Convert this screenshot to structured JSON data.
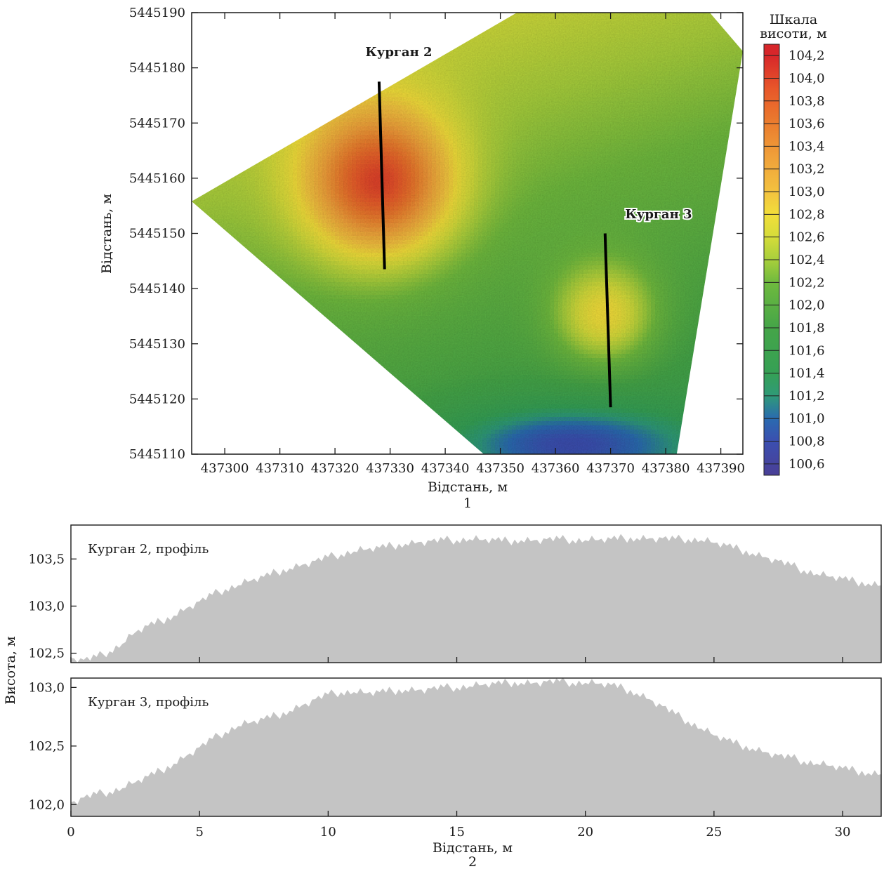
{
  "chart_data": [
    {
      "type": "heatmap",
      "panel_number": "1",
      "xlabel": "Відстань, м",
      "ylabel": "Відстань, м",
      "xlim": [
        437294,
        437394
      ],
      "ylim": [
        5445110,
        5445190
      ],
      "xticks": [
        "437300",
        "437310",
        "437320",
        "437330",
        "437340",
        "437350",
        "437360",
        "437370",
        "437380",
        "437390"
      ],
      "yticks": [
        "5445190",
        "5445180",
        "5445170",
        "5445160",
        "5445150",
        "5445140",
        "5445130",
        "5445120",
        "5445110"
      ],
      "colorbar": {
        "title_line1": "Шкала",
        "title_line2": "висоти, м",
        "vmin": 100.5,
        "vmax": 104.3,
        "labels": [
          "104,2",
          "104,0",
          "103,8",
          "103,6",
          "103,4",
          "103,2",
          "103,0",
          "102,8",
          "102,6",
          "102,4",
          "102,2",
          "102,0",
          "101,8",
          "101,6",
          "101,4",
          "101,2",
          "101,0",
          "100,8",
          "100,6"
        ],
        "colors": [
          "#d7262a",
          "#e8582a",
          "#eb7d2e",
          "#f0a13a",
          "#f3c23f",
          "#f2de3a",
          "#d5dc3a",
          "#a8cf3c",
          "#6fba3e",
          "#45a548",
          "#35a055",
          "#2f9a78",
          "#2a6bb0",
          "#3b4fb0",
          "#4a3f96"
        ],
        "color_stops": [
          104.2,
          103.9,
          103.6,
          103.3,
          103.0,
          102.8,
          102.6,
          102.4,
          102.2,
          101.8,
          101.4,
          101.2,
          101.0,
          100.8,
          100.5
        ]
      },
      "boundary": [
        [
          437294,
          5445155.8
        ],
        [
          437353,
          5445190
        ],
        [
          437388,
          5445190
        ],
        [
          437394,
          5445183
        ],
        [
          437382,
          5445110
        ],
        [
          437347,
          5445110
        ]
      ],
      "mounds": [
        {
          "label": "Курган 2",
          "center": [
            437328,
            5445159
          ],
          "height": 1.7,
          "radius": 13
        },
        {
          "label": "Курган 3",
          "center": [
            437369,
            5445135
          ],
          "height": 0.9,
          "radius": 9
        }
      ],
      "profile_lines": [
        {
          "label": "Курган 2",
          "from": [
            437328,
            5445177.5
          ],
          "to": [
            437329,
            5445143.5
          ]
        },
        {
          "label": "Курган 3",
          "from": [
            437369,
            5445150
          ],
          "to": [
            437370,
            5445118.5
          ]
        }
      ]
    },
    {
      "type": "area",
      "panel_number": "2",
      "xlabel": "Відстань, м",
      "ylabel": "Висота, м",
      "xlim": [
        0,
        31.5
      ],
      "xticks": [
        "0",
        "5",
        "10",
        "15",
        "20",
        "25",
        "30"
      ],
      "color": "#c4c4c4",
      "series": [
        {
          "name": "Курган 2, профіль",
          "ylim": [
            102.4,
            103.86
          ],
          "yticks": [
            "103,5",
            "103,0",
            "102,5"
          ],
          "x": [
            0,
            0.5,
            1,
            1.5,
            2,
            2.5,
            3,
            3.5,
            4,
            4.5,
            5,
            5.5,
            6,
            6.5,
            7,
            7.5,
            8,
            8.5,
            9,
            9.5,
            10,
            10.5,
            11,
            11.5,
            12,
            12.5,
            13,
            13.5,
            14,
            14.5,
            15,
            15.5,
            16,
            16.5,
            17,
            17.5,
            18,
            18.5,
            19,
            19.5,
            20,
            20.5,
            21,
            21.5,
            22,
            22.5,
            23,
            23.5,
            24,
            24.5,
            25,
            25.5,
            26,
            26.5,
            27,
            27.5,
            28,
            28.5,
            29,
            29.5,
            30,
            30.5,
            31,
            31.5
          ],
          "y": [
            102.45,
            102.43,
            102.46,
            102.52,
            102.6,
            102.72,
            102.79,
            102.84,
            102.9,
            102.98,
            103.05,
            103.12,
            103.18,
            103.22,
            103.27,
            103.31,
            103.36,
            103.4,
            103.44,
            103.48,
            103.52,
            103.55,
            103.58,
            103.6,
            103.62,
            103.64,
            103.66,
            103.68,
            103.69,
            103.7,
            103.7,
            103.71,
            103.7,
            103.7,
            103.69,
            103.7,
            103.7,
            103.71,
            103.71,
            103.7,
            103.7,
            103.7,
            103.71,
            103.72,
            103.72,
            103.72,
            103.72,
            103.71,
            103.71,
            103.7,
            103.67,
            103.64,
            103.6,
            103.56,
            103.52,
            103.48,
            103.43,
            103.38,
            103.34,
            103.31,
            103.29,
            103.26,
            103.24,
            103.22
          ]
        },
        {
          "name": "Курган 3, профіль",
          "ylim": [
            101.9,
            103.08
          ],
          "yticks": [
            "103,0",
            "102,5",
            "102,0"
          ],
          "x": [
            0,
            0.5,
            1,
            1.5,
            2,
            2.5,
            3,
            3.5,
            4,
            4.5,
            5,
            5.5,
            6,
            6.5,
            7,
            7.5,
            8,
            8.5,
            9,
            9.5,
            10,
            10.5,
            11,
            11.5,
            12,
            12.5,
            13,
            13.5,
            14,
            14.5,
            15,
            15.5,
            16,
            16.5,
            17,
            17.5,
            18,
            18.5,
            19,
            19.5,
            20,
            20.5,
            21,
            21.5,
            22,
            22.5,
            23,
            23.5,
            24,
            24.5,
            25,
            25.5,
            26,
            26.5,
            27,
            27.5,
            28,
            28.5,
            29,
            29.5,
            30,
            30.5,
            31,
            31.5
          ],
          "y": [
            102.02,
            102.06,
            102.09,
            102.11,
            102.14,
            102.19,
            102.24,
            102.29,
            102.35,
            102.42,
            102.49,
            102.56,
            102.62,
            102.67,
            102.7,
            102.73,
            102.76,
            102.8,
            102.85,
            102.9,
            102.94,
            102.96,
            102.96,
            102.95,
            102.96,
            102.97,
            102.98,
            102.98,
            102.99,
            103.0,
            103.0,
            103.01,
            103.02,
            103.03,
            103.04,
            103.04,
            103.04,
            103.05,
            103.05,
            103.04,
            103.04,
            103.03,
            103.02,
            102.99,
            102.95,
            102.9,
            102.84,
            102.77,
            102.71,
            102.65,
            102.59,
            102.55,
            102.51,
            102.48,
            102.45,
            102.42,
            102.4,
            102.37,
            102.35,
            102.33,
            102.31,
            102.29,
            102.27,
            102.26
          ]
        }
      ]
    }
  ]
}
